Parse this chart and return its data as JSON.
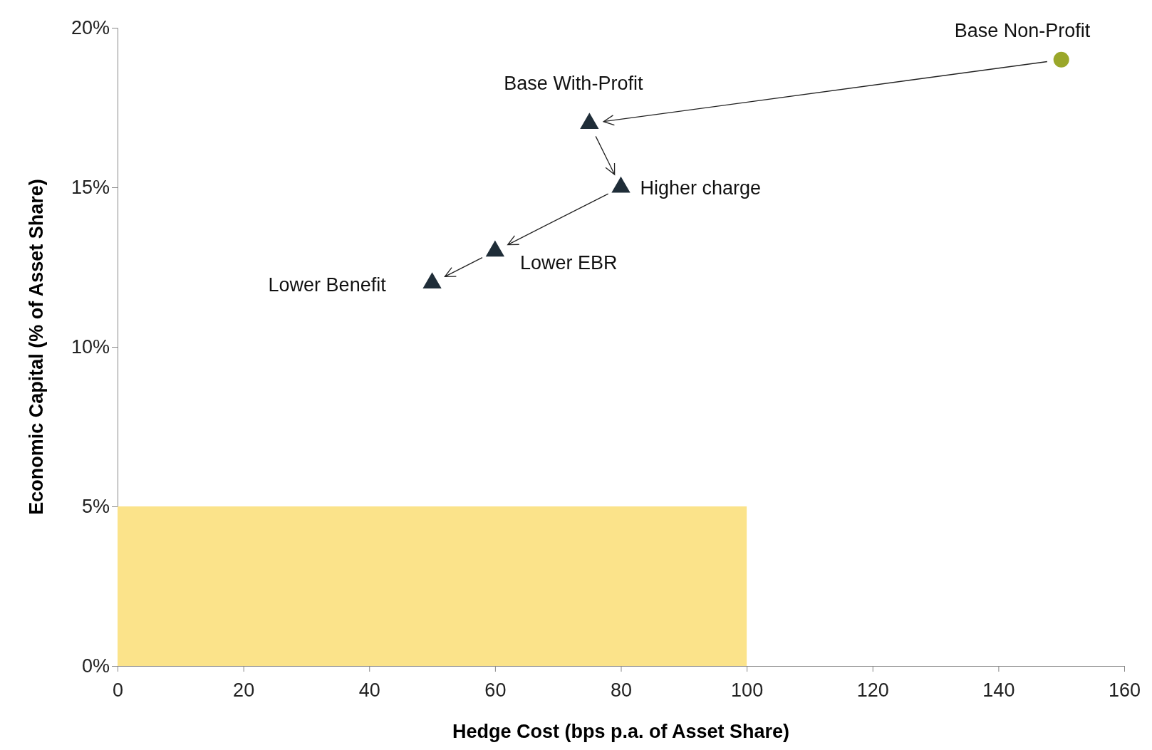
{
  "chart_data": {
    "type": "scatter",
    "xlabel": "Hedge Cost (bps p.a. of Asset Share)",
    "ylabel": "Economic Capital (% of Asset Share)",
    "xlim": [
      0,
      160
    ],
    "xticks": [
      0,
      20,
      40,
      60,
      80,
      100,
      120,
      140,
      160
    ],
    "ylim": [
      0,
      20
    ],
    "yticks": [
      {
        "value": 0,
        "label": "0%"
      },
      {
        "value": 5,
        "label": "5%"
      },
      {
        "value": 10,
        "label": "10%"
      },
      {
        "value": 15,
        "label": "15%"
      },
      {
        "value": 20,
        "label": "20%"
      }
    ],
    "grid": false,
    "series": [
      {
        "type": "area",
        "color": "#fbe38a",
        "x": [
          0,
          100
        ],
        "values": [
          5,
          5
        ]
      },
      {
        "color": "#9aa72a",
        "marker": "circle",
        "x": [
          150
        ],
        "values": [
          19
        ]
      },
      {
        "color": "#1f2d38",
        "marker": "triangle",
        "x": [
          75,
          80,
          60,
          50
        ],
        "values": [
          17,
          15,
          13,
          12
        ]
      }
    ],
    "annotations": [
      {
        "text": "Base Non-Profit",
        "x": 150,
        "y": 19
      },
      {
        "text": "Base With-Profit",
        "x": 75,
        "y": 17
      },
      {
        "text": "Higher charge",
        "x": 80,
        "y": 15
      },
      {
        "text": "Lower EBR",
        "x": 60,
        "y": 13
      },
      {
        "text": "Lower Benefit",
        "x": 50,
        "y": 12
      }
    ]
  }
}
